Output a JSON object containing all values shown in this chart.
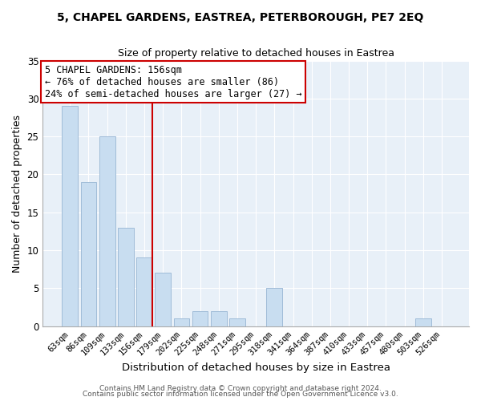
{
  "title_line1": "5, CHAPEL GARDENS, EASTREA, PETERBOROUGH, PE7 2EQ",
  "title_line2": "Size of property relative to detached houses in Eastrea",
  "xlabel": "Distribution of detached houses by size in Eastrea",
  "ylabel": "Number of detached properties",
  "annotation_line1": "5 CHAPEL GARDENS: 156sqm",
  "annotation_line2": "← 76% of detached houses are smaller (86)",
  "annotation_line3": "24% of semi-detached houses are larger (27) →",
  "bar_labels": [
    "63sqm",
    "86sqm",
    "109sqm",
    "133sqm",
    "156sqm",
    "179sqm",
    "202sqm",
    "225sqm",
    "248sqm",
    "271sqm",
    "295sqm",
    "318sqm",
    "341sqm",
    "364sqm",
    "387sqm",
    "410sqm",
    "433sqm",
    "457sqm",
    "480sqm",
    "503sqm",
    "526sqm"
  ],
  "bar_values": [
    29,
    19,
    25,
    13,
    9,
    7,
    1,
    2,
    2,
    1,
    0,
    5,
    0,
    0,
    0,
    0,
    0,
    0,
    0,
    1,
    0
  ],
  "highlight_index": 4,
  "bar_color": "#c8ddf0",
  "bar_edge_color": "#a0bcd8",
  "annotation_box_edge": "#cc0000",
  "red_line_color": "#cc0000",
  "background_color": "#ffffff",
  "plot_bg_color": "#e8f0f8",
  "grid_color": "#ffffff",
  "ylim": [
    0,
    35
  ],
  "yticks": [
    0,
    5,
    10,
    15,
    20,
    25,
    30,
    35
  ],
  "footer_line1": "Contains HM Land Registry data © Crown copyright and database right 2024.",
  "footer_line2": "Contains public sector information licensed under the Open Government Licence v3.0."
}
